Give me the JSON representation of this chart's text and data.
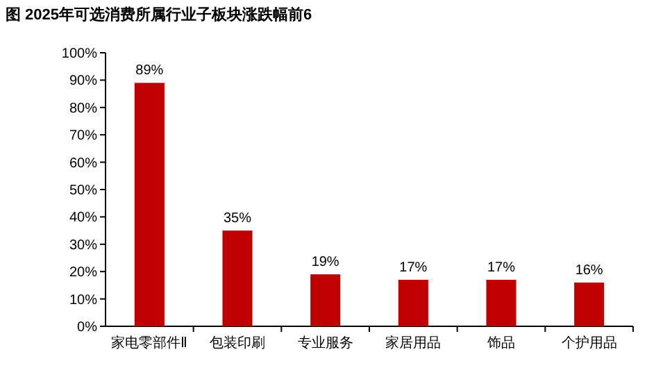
{
  "chart_data": {
    "type": "bar",
    "title": "图 2025年可选消费所属行业子板块涨跌幅前6",
    "categories": [
      "家电零部件Ⅱ",
      "包装印刷",
      "专业服务",
      "家居用品",
      "饰品",
      "个护用品"
    ],
    "values": [
      89,
      35,
      19,
      17,
      17,
      16
    ],
    "value_labels": [
      "89%",
      "35%",
      "19%",
      "17%",
      "17%",
      "16%"
    ],
    "color": "#c00000",
    "ylim": [
      0,
      100
    ],
    "yticks": [
      {
        "value": 0,
        "label": "0%"
      },
      {
        "value": 10,
        "label": "10%"
      },
      {
        "value": 20,
        "label": "20%"
      },
      {
        "value": 30,
        "label": "30%"
      },
      {
        "value": 40,
        "label": "40%"
      },
      {
        "value": 50,
        "label": "50%"
      },
      {
        "value": 60,
        "label": "60%"
      },
      {
        "value": 70,
        "label": "70%"
      },
      {
        "value": 80,
        "label": "80%"
      },
      {
        "value": 90,
        "label": "90%"
      },
      {
        "value": 100,
        "label": "100%"
      }
    ],
    "grid": false
  }
}
